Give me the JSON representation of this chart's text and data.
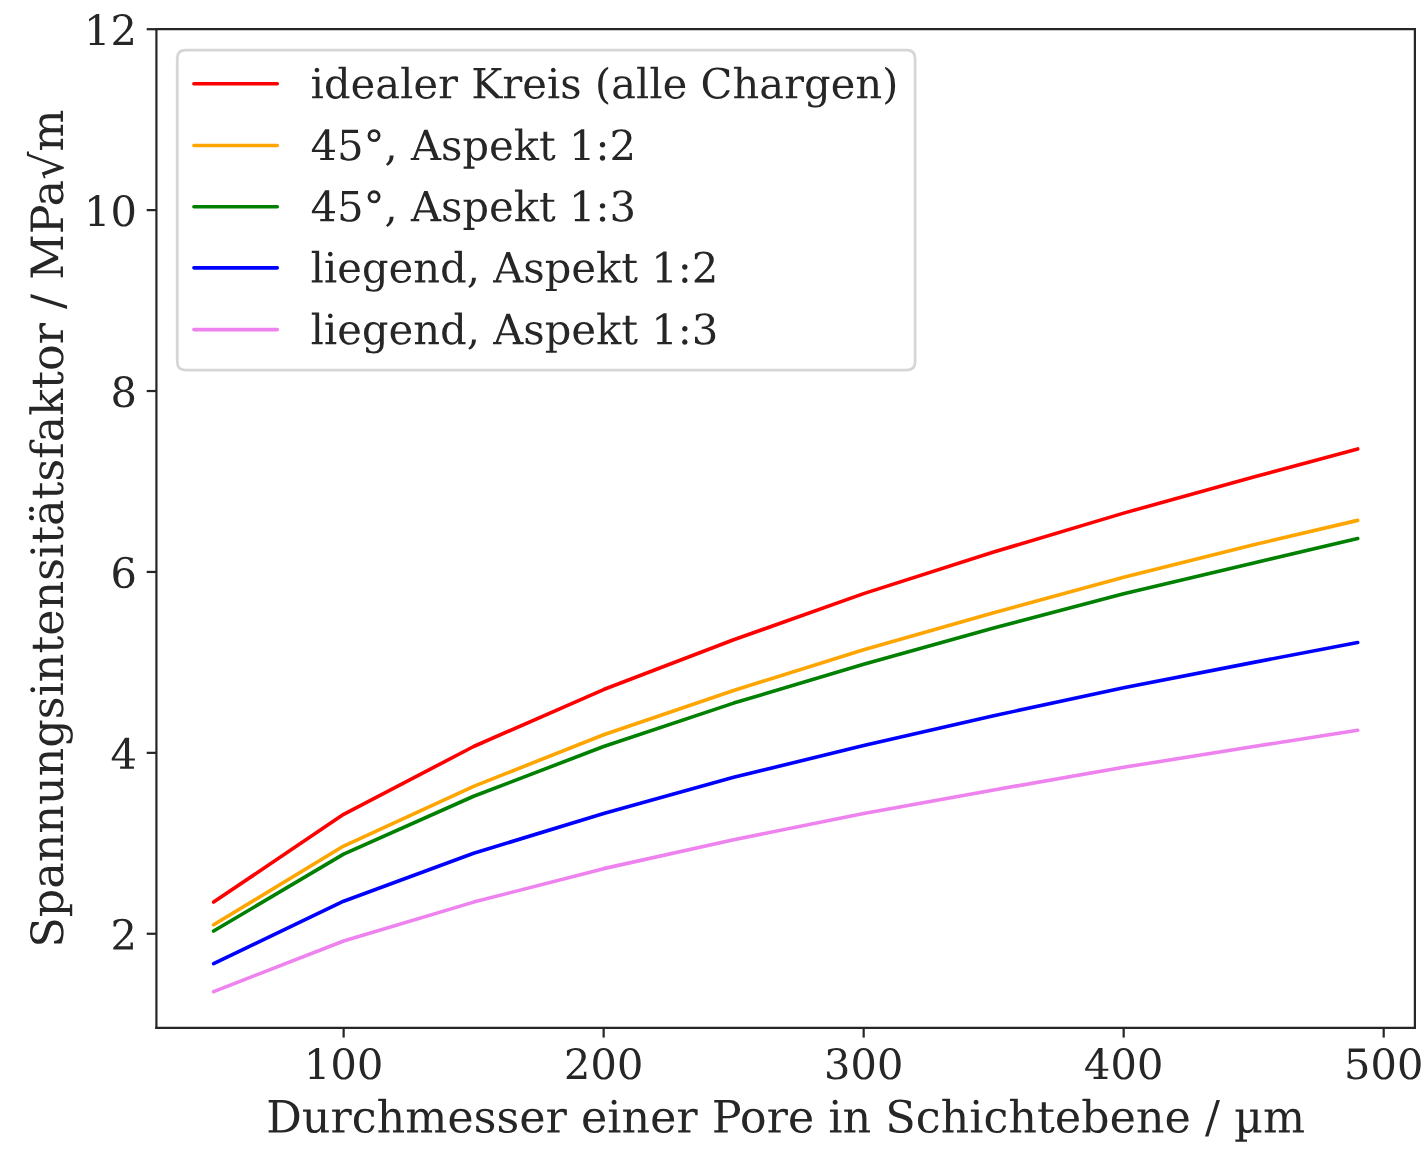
{
  "chart_data": {
    "type": "line",
    "xlabel": "Durchmesser einer Pore in Schichtebene / µm",
    "ylabel": "Spannungsintensitätsfaktor / MPa√m",
    "x": [
      50,
      100,
      150,
      200,
      250,
      300,
      350,
      400,
      450,
      490
    ],
    "series": [
      {
        "name": "idealer Kreis (alle Chargen)",
        "color": "#ff0000",
        "values": [
          2.35,
          3.32,
          4.07,
          4.7,
          5.25,
          5.76,
          6.22,
          6.65,
          7.05,
          7.36
        ]
      },
      {
        "name": "45°, Aspekt 1:2",
        "color": "#ffa500",
        "values": [
          2.1,
          2.97,
          3.63,
          4.2,
          4.69,
          5.14,
          5.55,
          5.94,
          6.3,
          6.57
        ]
      },
      {
        "name": "45°, Aspekt 1:3",
        "color": "#008000",
        "values": [
          2.03,
          2.88,
          3.52,
          4.07,
          4.55,
          4.98,
          5.38,
          5.76,
          6.1,
          6.37
        ]
      },
      {
        "name": "liegend, Aspekt 1:2",
        "color": "#0000ff",
        "values": [
          1.67,
          2.36,
          2.89,
          3.33,
          3.73,
          4.08,
          4.41,
          4.72,
          5.0,
          5.22
        ]
      },
      {
        "name": "liegend, Aspekt 1:3",
        "color": "#ee82ee",
        "values": [
          1.36,
          1.92,
          2.35,
          2.72,
          3.04,
          3.33,
          3.59,
          3.84,
          4.07,
          4.25
        ]
      }
    ],
    "xlim": [
      28,
      512
    ],
    "xticks": [
      100,
      200,
      300,
      400,
      500
    ],
    "ylim": [
      0.96,
      12
    ],
    "yticks": [
      2,
      4,
      6,
      8,
      10,
      12
    ],
    "grid": false,
    "legend": "top left",
    "marker": "none",
    "line_style": "solid"
  }
}
